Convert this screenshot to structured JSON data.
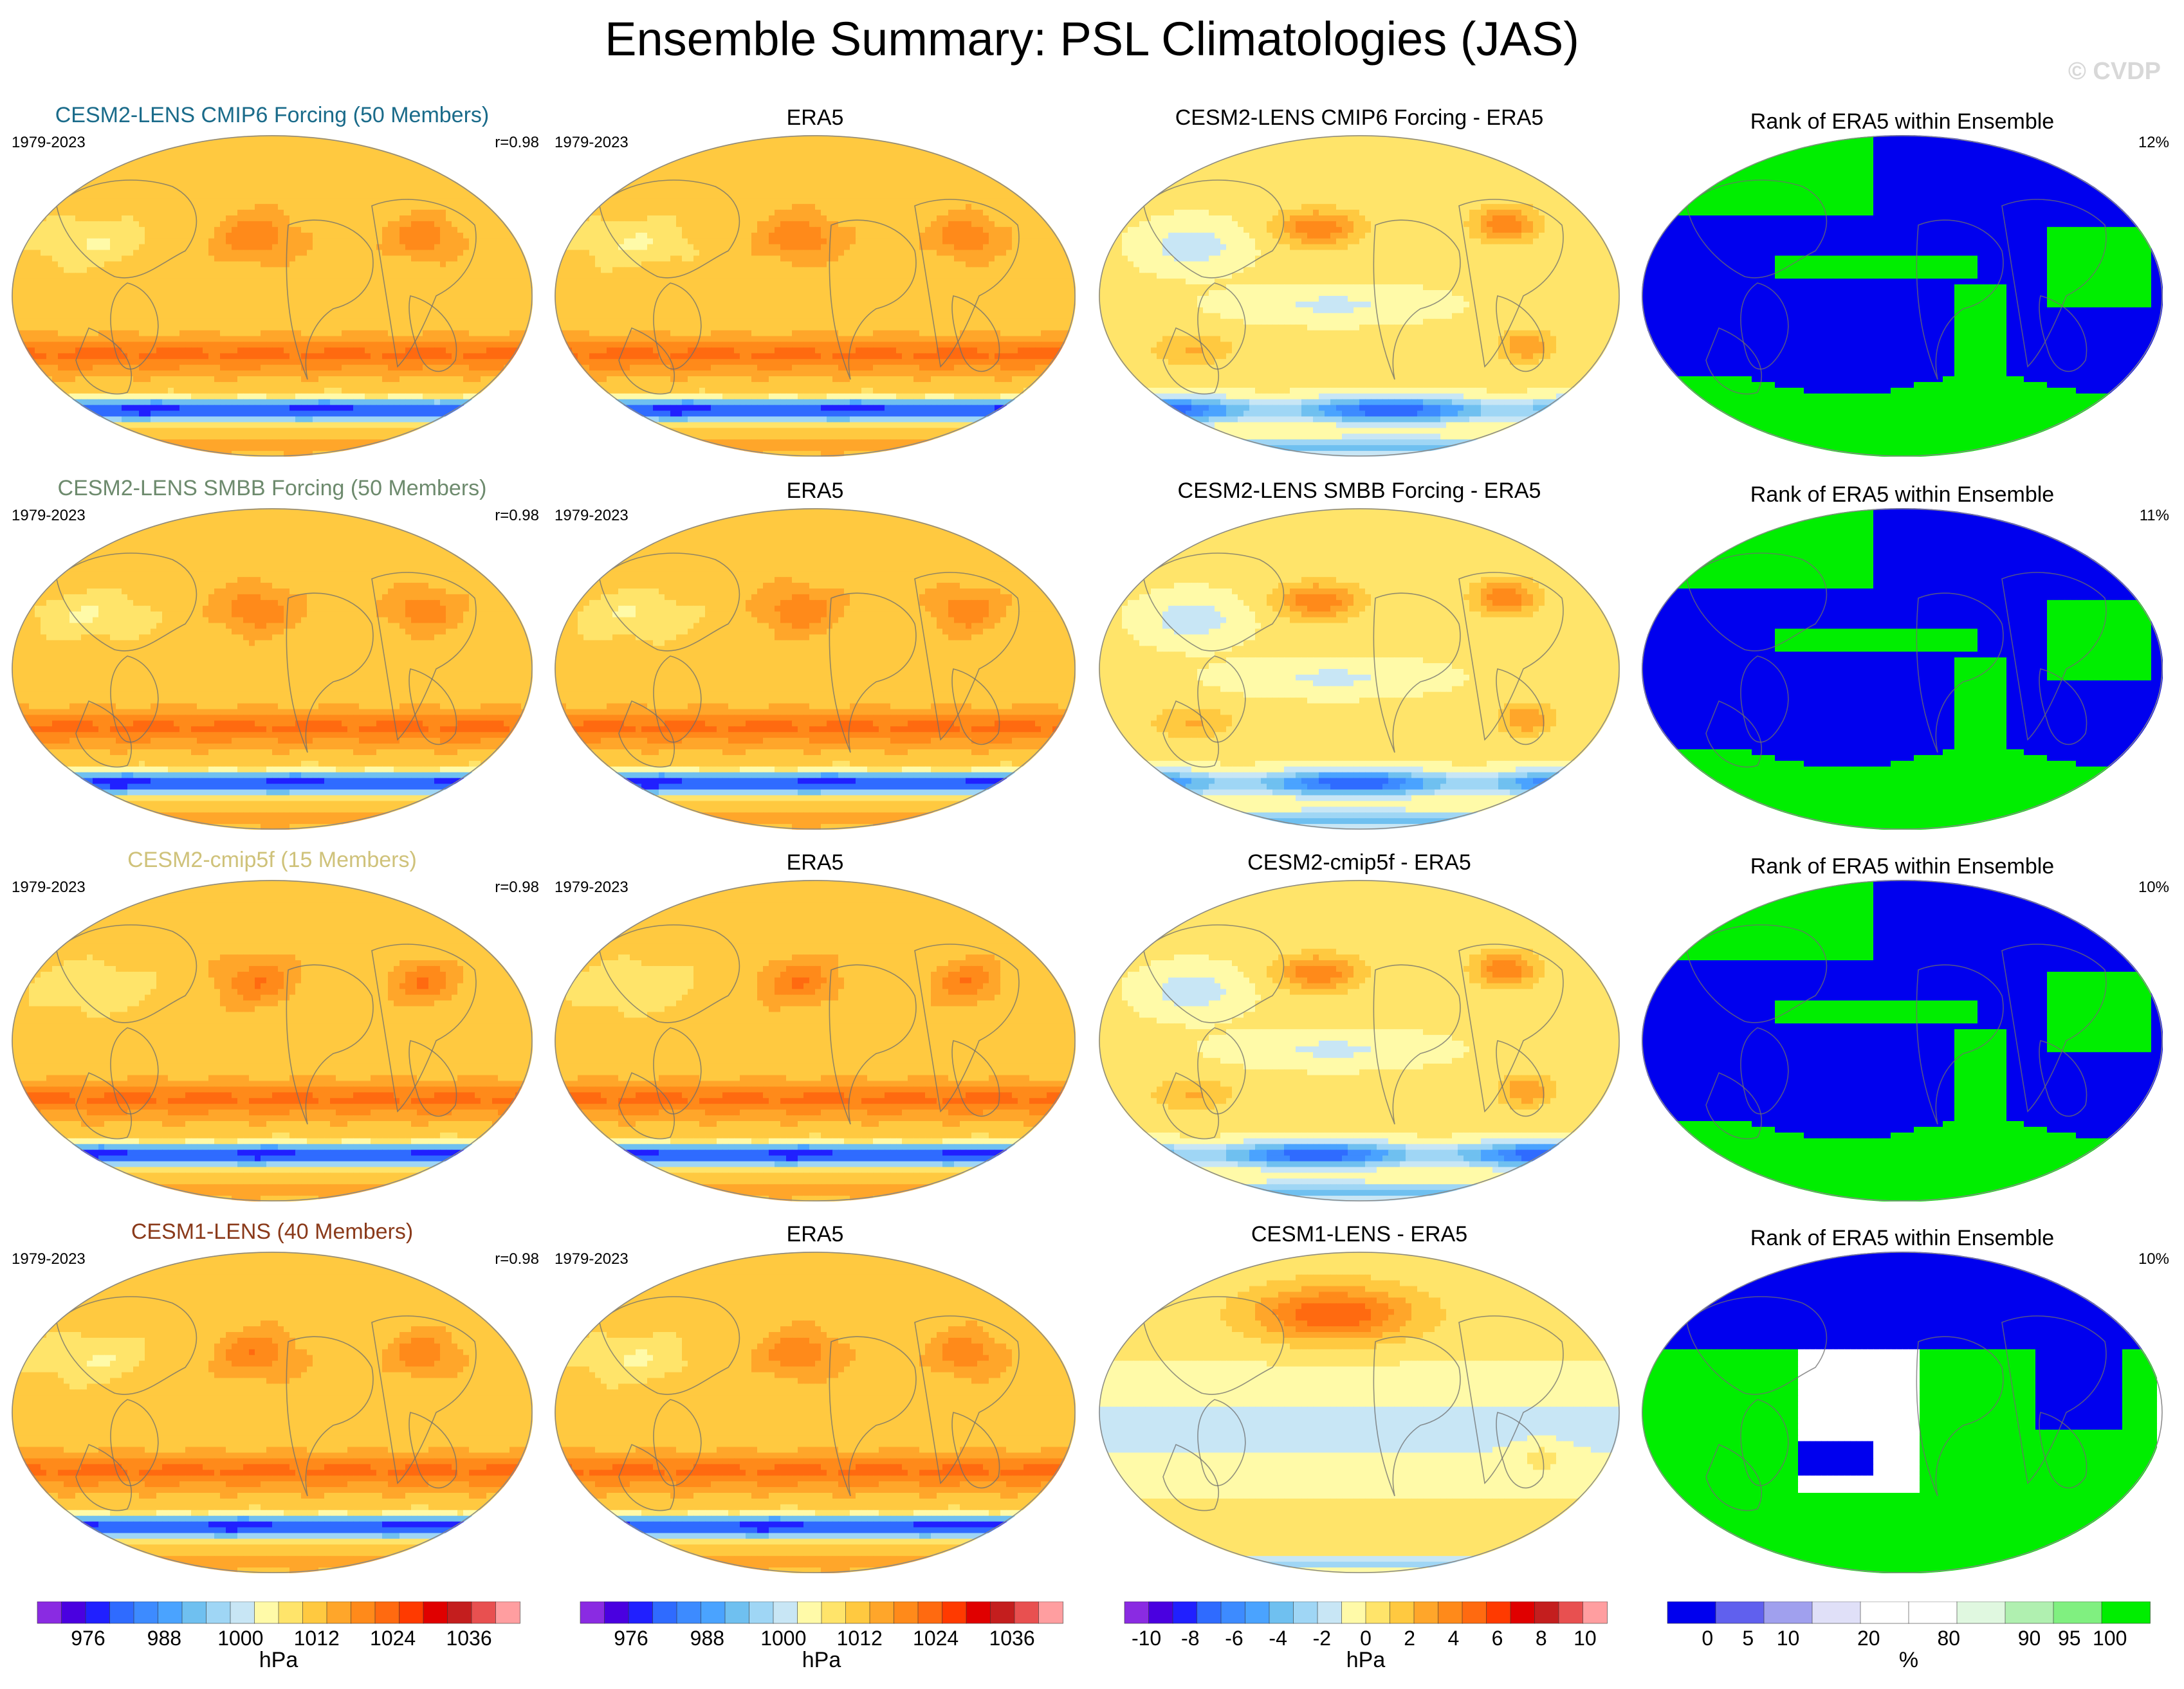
{
  "title": "Ensemble Summary: PSL Climatologies (JAS)",
  "watermark": "© CVDP",
  "colors": {
    "land_outline": "#6e6e6e",
    "rank_low": "#0000ee",
    "rank_high": "#00ee00",
    "rank_mid": "#ffffff"
  },
  "rows": [
    {
      "model_title": "CESM2-LENS CMIP6 Forcing (50 Members)",
      "model_title_color": "#1a6b8a",
      "period": "1979-2023",
      "pattern_corr": "r=0.98",
      "obs_title": "ERA5",
      "obs_period": "1979-2023",
      "diff_title": "CESM2-LENS CMIP6 Forcing - ERA5",
      "rank_title": "Rank of ERA5 within Ensemble",
      "rank_pct": "12%"
    },
    {
      "model_title": "CESM2-LENS SMBB Forcing (50 Members)",
      "model_title_color": "#6d8a6d",
      "period": "1979-2023",
      "pattern_corr": "r=0.98",
      "obs_title": "ERA5",
      "obs_period": "1979-2023",
      "diff_title": "CESM2-LENS SMBB Forcing - ERA5",
      "rank_title": "Rank of ERA5 within Ensemble",
      "rank_pct": "11%"
    },
    {
      "model_title": "CESM2-cmip5f (15 Members)",
      "model_title_color": "#cfc27a",
      "period": "1979-2023",
      "pattern_corr": "r=0.98",
      "obs_title": "ERA5",
      "obs_period": "1979-2023",
      "diff_title": "CESM2-cmip5f - ERA5",
      "rank_title": "Rank of ERA5 within Ensemble",
      "rank_pct": "10%"
    },
    {
      "model_title": "CESM1-LENS (40 Members)",
      "model_title_color": "#8a3a1a",
      "period": "1979-2023",
      "pattern_corr": "r=0.98",
      "obs_title": "ERA5",
      "obs_period": "1979-2023",
      "diff_title": "CESM1-LENS - ERA5",
      "rank_title": "Rank of ERA5 within Ensemble",
      "rank_pct": "10%"
    }
  ],
  "chart_data": {
    "type": "heatmap",
    "description_kind": "filled-contour maps, Robinson projection, 4 rows x 4 columns",
    "columns": [
      "model climatology",
      "ERA5 climatology",
      "model minus ERA5",
      "rank of ERA5 within ensemble"
    ],
    "colorbars": [
      {
        "unit": "hPa",
        "tick_labels": [
          "976",
          "988",
          "1000",
          "1012",
          "1024",
          "1036"
        ],
        "range": [
          968,
          1044
        ],
        "colors": [
          "#8a2be2",
          "#4a00e0",
          "#2020ff",
          "#2f6bff",
          "#3d8bff",
          "#4aa3ff",
          "#6fc0f0",
          "#9fd6f5",
          "#c8e6f5",
          "#fffaa8",
          "#ffe46a",
          "#ffc940",
          "#ffa62a",
          "#ff8a1a",
          "#ff6a10",
          "#ff3a00",
          "#e00000",
          "#c41e1e",
          "#e85050",
          "#ff9ea0"
        ]
      },
      {
        "unit": "hPa",
        "tick_labels": [
          "976",
          "988",
          "1000",
          "1012",
          "1024",
          "1036"
        ],
        "range": [
          968,
          1044
        ],
        "colors": [
          "#8a2be2",
          "#4a00e0",
          "#2020ff",
          "#2f6bff",
          "#3d8bff",
          "#4aa3ff",
          "#6fc0f0",
          "#9fd6f5",
          "#c8e6f5",
          "#fffaa8",
          "#ffe46a",
          "#ffc940",
          "#ffa62a",
          "#ff8a1a",
          "#ff6a10",
          "#ff3a00",
          "#e00000",
          "#c41e1e",
          "#e85050",
          "#ff9ea0"
        ]
      },
      {
        "unit": "hPa",
        "tick_labels": [
          "-10",
          "-8",
          "-6",
          "-4",
          "-2",
          "0",
          "2",
          "4",
          "6",
          "8",
          "10"
        ],
        "range": [
          -11,
          11
        ],
        "colors": [
          "#8a2be2",
          "#4a00e0",
          "#2020ff",
          "#2f6bff",
          "#3d8bff",
          "#4aa3ff",
          "#6fc0f0",
          "#9fd6f5",
          "#c8e6f5",
          "#fffaa8",
          "#ffe46a",
          "#ffc940",
          "#ffa62a",
          "#ff8a1a",
          "#ff6a10",
          "#ff3a00",
          "#e00000",
          "#c41e1e",
          "#e85050",
          "#ff9ea0"
        ]
      },
      {
        "unit": "%",
        "tick_labels": [
          "0",
          "5",
          "10",
          "20",
          "80",
          "90",
          "95",
          "100"
        ],
        "tick_positions": [
          0.083,
          0.167,
          0.25,
          0.417,
          0.583,
          0.75,
          0.833,
          0.917
        ],
        "colors": [
          "#0000ee",
          "#6060ee",
          "#a0a0ee",
          "#e0e0f8",
          "#ffffff",
          "#ffffff",
          "#e0f8e0",
          "#b0f0b0",
          "#80f080",
          "#00ee00"
        ]
      }
    ]
  }
}
